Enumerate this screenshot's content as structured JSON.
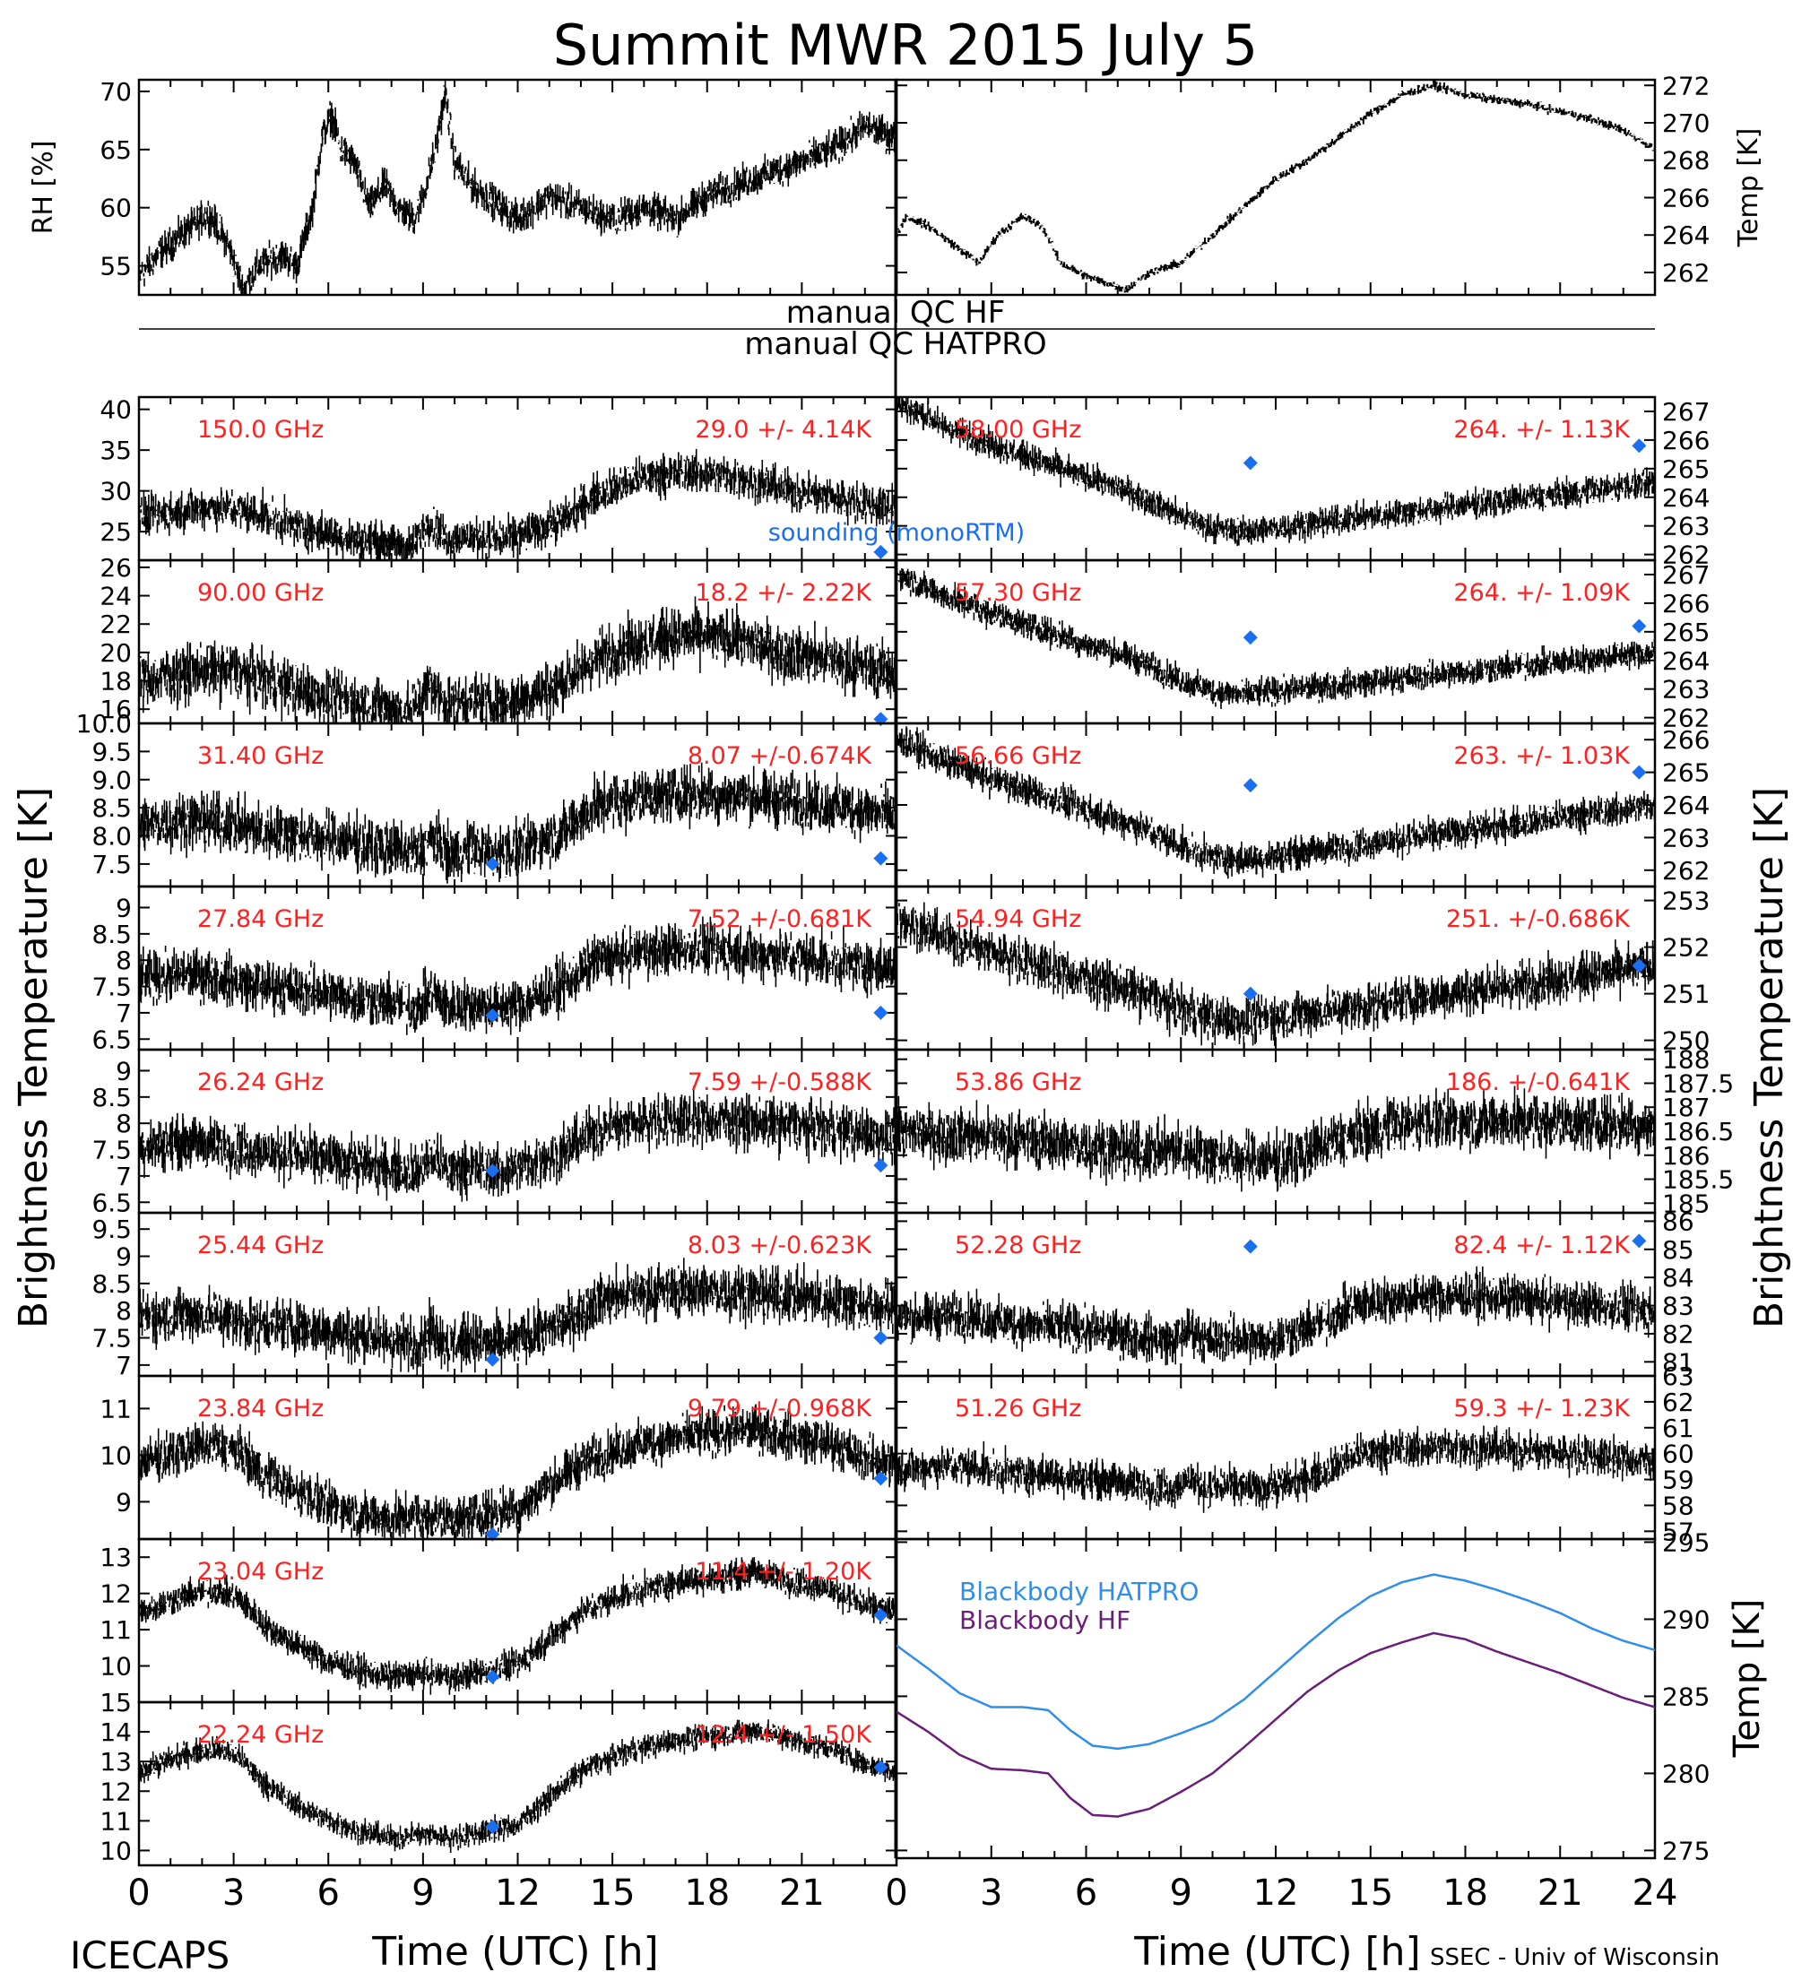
{
  "title": "Summit MWR 2015 July  5",
  "footer": {
    "left": "ICECAPS",
    "right": "SSEC - Univ of Wisconsin"
  },
  "labels": {
    "left_axis": "Brightness Temperature [K]",
    "right_axis": "Brightness Temperature [K]",
    "xlabel": "Time (UTC) [h]",
    "qc_hf": "manual QC HF",
    "qc_hatpro": "manual QC HATPRO"
  },
  "colors": {
    "trace": "#000000",
    "label": "#ff2020",
    "sounding": "#1a6ff0",
    "bb_hatpro": "#2f8ee8",
    "bb_hf": "#6a1e7a"
  },
  "chart_data": [
    {
      "type": "scatter",
      "id": "rh",
      "ylabel": "RH [%]",
      "ylim": [
        52.5,
        71
      ],
      "yticks": [
        55,
        60,
        65,
        70
      ],
      "xlim": [
        0,
        24
      ],
      "anchors": [
        [
          0,
          54
        ],
        [
          0.6,
          56
        ],
        [
          1.5,
          58
        ],
        [
          2.2,
          59.5
        ],
        [
          2.8,
          57
        ],
        [
          3.3,
          53
        ],
        [
          3.8,
          55
        ],
        [
          4.5,
          56
        ],
        [
          5.0,
          55
        ],
        [
          5.5,
          60
        ],
        [
          5.8,
          66
        ],
        [
          6.1,
          68
        ],
        [
          6.4,
          65
        ],
        [
          6.8,
          64
        ],
        [
          7.3,
          60
        ],
        [
          7.8,
          62
        ],
        [
          8.2,
          60
        ],
        [
          8.7,
          59
        ],
        [
          9.0,
          61
        ],
        [
          9.4,
          65
        ],
        [
          9.7,
          70
        ],
        [
          10.0,
          64
        ],
        [
          10.5,
          62
        ],
        [
          11.0,
          61
        ],
        [
          11.5,
          60
        ],
        [
          12.0,
          59
        ],
        [
          13.0,
          61
        ],
        [
          14.0,
          60
        ],
        [
          15.0,
          59
        ],
        [
          16.0,
          60
        ],
        [
          17.0,
          59
        ],
        [
          18.0,
          61
        ],
        [
          19.0,
          62
        ],
        [
          20.0,
          63
        ],
        [
          21.0,
          64
        ],
        [
          22.0,
          65
        ],
        [
          23.0,
          67
        ],
        [
          24,
          66
        ]
      ],
      "noise": 0.9,
      "trend_hint": "noisy RH trace"
    },
    {
      "type": "line",
      "id": "temp",
      "ylabel": "Temp [K]",
      "ylim": [
        260.8,
        272.3
      ],
      "yticks": [
        262,
        264,
        266,
        268,
        270,
        272
      ],
      "xlim": [
        0,
        24
      ],
      "anchors": [
        [
          0,
          264
        ],
        [
          0.3,
          265
        ],
        [
          1,
          264.5
        ],
        [
          1.8,
          263.5
        ],
        [
          2.6,
          262.5
        ],
        [
          3.2,
          264
        ],
        [
          4,
          265
        ],
        [
          4.6,
          264.5
        ],
        [
          5.2,
          262.5
        ],
        [
          6,
          261.8
        ],
        [
          6.9,
          261.3
        ],
        [
          7.3,
          261.1
        ],
        [
          8,
          262
        ],
        [
          9,
          262.5
        ],
        [
          10,
          264
        ],
        [
          11,
          265.5
        ],
        [
          12,
          267
        ],
        [
          13,
          268
        ],
        [
          14,
          269.2
        ],
        [
          15,
          270.5
        ],
        [
          16,
          271.5
        ],
        [
          17,
          272
        ],
        [
          18,
          271.5
        ],
        [
          19,
          271.2
        ],
        [
          20,
          271
        ],
        [
          21,
          270.6
        ],
        [
          22,
          270.2
        ],
        [
          23,
          269.6
        ],
        [
          24,
          268.6
        ]
      ],
      "noise": 0.15
    },
    {
      "type": "scatter",
      "id": "hf150",
      "freq": "150.0 GHz",
      "stat": "29.0 +/-  4.14K",
      "ylim": [
        21.5,
        41.5
      ],
      "yticks": [
        25,
        30,
        35,
        40
      ],
      "shape": "hf",
      "base": 23,
      "amp": 12,
      "noise": 1.5,
      "sounding": [
        [
          23.5,
          22.5
        ]
      ],
      "sounding_label": "sounding (monoRTM)"
    },
    {
      "type": "scatter",
      "id": "hf90",
      "freq": "90.00 GHz",
      "stat": "18.2 +/-  2.22K",
      "ylim": [
        15,
        26.5
      ],
      "yticks": [
        16,
        18,
        20,
        22,
        24,
        26
      ],
      "shape": "hf",
      "base": 15.8,
      "amp": 7,
      "noise": 1.2,
      "sounding": [
        [
          23.5,
          15.3
        ]
      ]
    },
    {
      "type": "scatter",
      "id": "hp3140",
      "freq": "31.40 GHz",
      "stat": "8.07 +/-0.674K",
      "ylim": [
        7.1,
        10.0
      ],
      "yticks": [
        7.5,
        8.0,
        8.5,
        9.0,
        9.5,
        10.0
      ],
      "tick_labels": [
        "7.5",
        "8.0",
        "8.5",
        "9.0",
        "9.5",
        "10.0"
      ],
      "shape": "k",
      "base": 7.6,
      "amp": 1.7,
      "noise": 0.3,
      "sounding": [
        [
          11.2,
          7.5
        ],
        [
          23.5,
          7.6
        ]
      ]
    },
    {
      "type": "scatter",
      "id": "hp2784",
      "freq": "27.84 GHz",
      "stat": "7.52 +/-0.681K",
      "ylim": [
        6.3,
        9.4
      ],
      "yticks": [
        6.5,
        7.0,
        7.5,
        8.0,
        8.5,
        9.0
      ],
      "shape": "k",
      "base": 7.0,
      "amp": 1.8,
      "noise": 0.3,
      "sounding": [
        [
          11.2,
          6.95
        ],
        [
          23.5,
          7.0
        ]
      ]
    },
    {
      "type": "scatter",
      "id": "hp2624",
      "freq": "26.24 GHz",
      "stat": "7.59 +/-0.588K",
      "ylim": [
        6.3,
        9.4
      ],
      "yticks": [
        6.5,
        7.0,
        7.5,
        8.0,
        8.5,
        9.0
      ],
      "shape": "k",
      "base": 7.0,
      "amp": 1.6,
      "noise": 0.3,
      "sounding": [
        [
          11.2,
          7.1
        ],
        [
          23.5,
          7.2
        ]
      ]
    },
    {
      "type": "scatter",
      "id": "hp2544",
      "freq": "25.44 GHz",
      "stat": "8.03 +/-0.623K",
      "ylim": [
        6.8,
        9.8
      ],
      "yticks": [
        7.0,
        7.5,
        8.0,
        8.5,
        9.0,
        9.5
      ],
      "shape": "k",
      "base": 7.3,
      "amp": 1.6,
      "noise": 0.3,
      "sounding": [
        [
          11.2,
          7.1
        ],
        [
          23.5,
          7.5
        ]
      ]
    },
    {
      "type": "scatter",
      "id": "hp2384",
      "freq": "23.84 GHz",
      "stat": "9.79 +/-0.968K",
      "ylim": [
        8.2,
        11.7
      ],
      "yticks": [
        9,
        10,
        11
      ],
      "shape": "w",
      "base": 8.5,
      "amp": 2.4,
      "noise": 0.3,
      "sounding": [
        [
          11.2,
          8.3
        ],
        [
          23.5,
          9.5
        ]
      ]
    },
    {
      "type": "scatter",
      "id": "hp2304",
      "freq": "23.04 GHz",
      "stat": "11.4 +/-  1.20K",
      "ylim": [
        9.0,
        13.5
      ],
      "yticks": [
        10,
        11,
        12,
        13
      ],
      "shape": "w",
      "base": 9.5,
      "amp": 3.6,
      "noise": 0.25,
      "sounding": [
        [
          11.2,
          9.7
        ],
        [
          23.5,
          11.4
        ]
      ]
    },
    {
      "type": "scatter",
      "id": "hp2224",
      "freq": "22.24 GHz",
      "stat": "12.4 +/-  1.50K",
      "ylim": [
        9.5,
        15.0
      ],
      "yticks": [
        10,
        11,
        12,
        13,
        14,
        15
      ],
      "shape": "w",
      "base": 10.2,
      "amp": 4.5,
      "noise": 0.25,
      "sounding": [
        [
          11.2,
          10.8
        ],
        [
          23.5,
          12.8
        ]
      ]
    },
    {
      "type": "scatter",
      "id": "hp5800",
      "freq": "58.00 GHz",
      "stat": "264. +/- 1.13K",
      "ylim": [
        261.8,
        267.5
      ],
      "yticks": [
        262,
        263,
        264,
        265,
        266,
        267
      ],
      "shape": "v",
      "hi": 267.3,
      "lo": 262.8,
      "end": 264.5,
      "noise": 0.3,
      "sounding": [
        [
          11.2,
          265.2
        ],
        [
          23.5,
          265.8
        ]
      ]
    },
    {
      "type": "scatter",
      "id": "hp5730",
      "freq": "57.30 GHz",
      "stat": "264. +/- 1.09K",
      "ylim": [
        261.8,
        267.5
      ],
      "yticks": [
        262,
        263,
        264,
        265,
        266,
        267
      ],
      "shape": "v",
      "hi": 267,
      "lo": 262.8,
      "end": 264.3,
      "noise": 0.3,
      "sounding": [
        [
          11.2,
          264.8
        ],
        [
          23.5,
          265.2
        ]
      ]
    },
    {
      "type": "scatter",
      "id": "hp5666",
      "freq": "56.66 GHz",
      "stat": "263. +/- 1.03K",
      "ylim": [
        261.5,
        266.5
      ],
      "yticks": [
        262,
        263,
        264,
        265,
        266
      ],
      "shape": "v",
      "hi": 266,
      "lo": 262.3,
      "end": 264,
      "noise": 0.3,
      "sounding": [
        [
          11.2,
          264.6
        ],
        [
          23.5,
          265
        ]
      ]
    },
    {
      "type": "scatter",
      "id": "hp5494",
      "freq": "54.94 GHz",
      "stat": "251. +/-0.686K",
      "ylim": [
        249.8,
        253.3
      ],
      "yticks": [
        250,
        251,
        252,
        253
      ],
      "shape": "v",
      "hi": 252.6,
      "lo": 250.4,
      "end": 251.6,
      "noise": 0.3,
      "sounding": [
        [
          11.2,
          251
        ],
        [
          23.5,
          251.6
        ]
      ]
    },
    {
      "type": "scatter",
      "id": "hp5386",
      "freq": "53.86 GHz",
      "stat": "186. +/-0.641K",
      "ylim": [
        184.8,
        188.2
      ],
      "yticks": [
        185,
        185.5,
        186,
        186.5,
        187,
        187.5,
        188
      ],
      "shape": "u",
      "base": 185.7,
      "amp": 1.4,
      "noise": 0.35,
      "sounding": []
    },
    {
      "type": "scatter",
      "id": "hp5228",
      "freq": "52.28 GHz",
      "stat": "82.4 +/- 1.12K",
      "ylim": [
        80.5,
        86.3
      ],
      "yticks": [
        81,
        82,
        83,
        84,
        85,
        86
      ],
      "shape": "k",
      "base": 81.6,
      "amp": 2.6,
      "noise": 0.5,
      "sounding": [
        [
          11.2,
          85.1
        ],
        [
          23.5,
          85.3
        ]
      ]
    },
    {
      "type": "scatter",
      "id": "hp5126",
      "freq": "51.26 GHz",
      "stat": "59.3 +/- 1.23K",
      "ylim": [
        56.7,
        63
      ],
      "yticks": [
        57,
        58,
        59,
        60,
        61,
        62,
        63
      ],
      "shape": "k",
      "base": 58.5,
      "amp": 2.6,
      "noise": 0.45,
      "sounding": []
    },
    {
      "type": "line",
      "id": "bb",
      "ylabel": "Temp [K]",
      "ylim": [
        274.5,
        295.2
      ],
      "yticks": [
        275,
        280,
        285,
        290,
        295
      ],
      "series": [
        {
          "name": "Blackbody HATPRO",
          "color_key": "bb_hatpro",
          "anchors": [
            [
              0,
              288.3
            ],
            [
              1,
              286.8
            ],
            [
              2,
              285.2
            ],
            [
              3,
              284.3
            ],
            [
              4,
              284.3
            ],
            [
              4.8,
              284.1
            ],
            [
              5.5,
              282.8
            ],
            [
              6.2,
              281.8
            ],
            [
              7,
              281.6
            ],
            [
              8,
              281.9
            ],
            [
              9,
              282.6
            ],
            [
              10,
              283.4
            ],
            [
              11,
              284.8
            ],
            [
              12,
              286.6
            ],
            [
              13,
              288.4
            ],
            [
              14,
              290.1
            ],
            [
              15,
              291.5
            ],
            [
              16,
              292.4
            ],
            [
              17,
              292.9
            ],
            [
              18,
              292.5
            ],
            [
              19,
              291.9
            ],
            [
              20,
              291.2
            ],
            [
              21,
              290.4
            ],
            [
              22,
              289.4
            ],
            [
              23,
              288.6
            ],
            [
              24,
              288.0
            ]
          ]
        },
        {
          "name": "Blackbody HF",
          "color_key": "bb_hf",
          "anchors": [
            [
              0,
              284.0
            ],
            [
              1,
              282.7
            ],
            [
              2,
              281.2
            ],
            [
              3,
              280.3
            ],
            [
              4,
              280.2
            ],
            [
              4.8,
              280.0
            ],
            [
              5.5,
              278.4
            ],
            [
              6.2,
              277.3
            ],
            [
              7,
              277.2
            ],
            [
              8,
              277.7
            ],
            [
              9,
              278.8
            ],
            [
              10,
              280.0
            ],
            [
              11,
              281.7
            ],
            [
              12,
              283.5
            ],
            [
              13,
              285.3
            ],
            [
              14,
              286.7
            ],
            [
              15,
              287.8
            ],
            [
              16,
              288.5
            ],
            [
              17,
              289.1
            ],
            [
              18,
              288.7
            ],
            [
              19,
              287.9
            ],
            [
              20,
              287.2
            ],
            [
              21,
              286.5
            ],
            [
              22,
              285.7
            ],
            [
              23,
              284.9
            ],
            [
              24,
              284.3
            ]
          ]
        }
      ]
    }
  ]
}
